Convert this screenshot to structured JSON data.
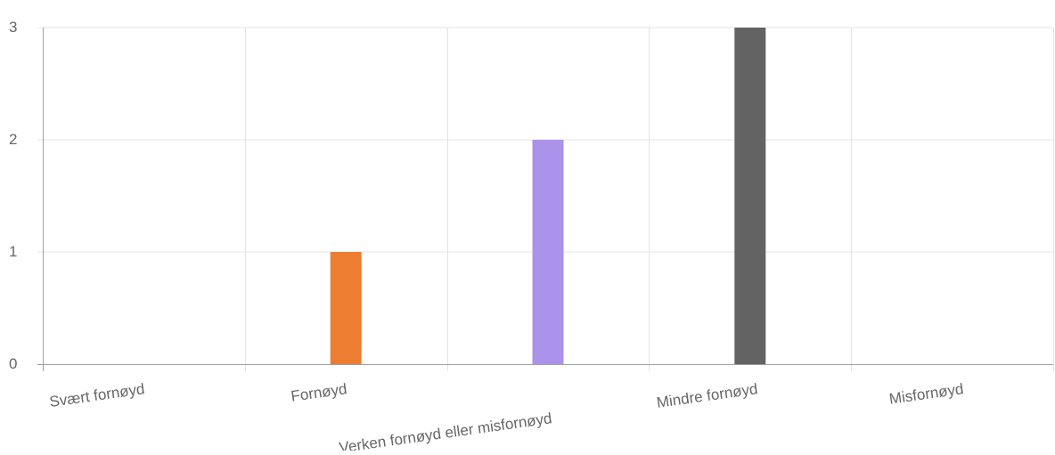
{
  "chart_data": {
    "type": "bar",
    "categories": [
      "Svært fornøyd",
      "Fornøyd",
      "Verken fornøyd eller misfornøyd",
      "Mindre fornøyd",
      "Misfornøyd"
    ],
    "values": [
      0,
      1,
      2,
      3,
      0
    ],
    "colors": [
      "#4e79a7",
      "#ed7d31",
      "#ab92ea",
      "#636363",
      "#c9c9c9"
    ],
    "title": "",
    "xlabel": "",
    "ylabel": "",
    "ylim": [
      0,
      3
    ],
    "yticks": [
      "0",
      "1",
      "2",
      "3"
    ],
    "grid": true,
    "legend": "none"
  }
}
